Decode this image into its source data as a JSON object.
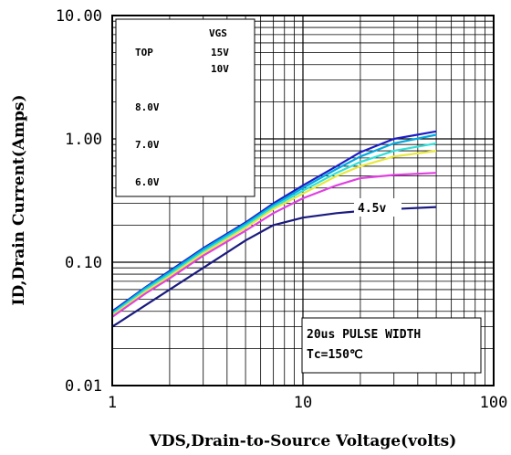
{
  "chart_data": {
    "type": "line",
    "xscale": "log",
    "yscale": "log",
    "xlim": [
      1,
      100
    ],
    "ylim": [
      0.01,
      10
    ],
    "grid": true,
    "xlabel": "VDS,Drain-to-Source Voltage(volts)",
    "ylabel": "ID,Drain Current(Amps)",
    "x_ticks": [
      "1",
      "10",
      "100"
    ],
    "y_ticks": [
      "10.00",
      "1.00",
      "0.10",
      "0.01"
    ],
    "legend": {
      "header": "VGS",
      "top_label": "TOP",
      "entries": [
        "15V",
        "10V",
        "8.0V",
        "7.0V",
        "6.0V"
      ]
    },
    "annotations": {
      "curve_label": "4.5v",
      "pulse": "20us PULSE WIDTH",
      "temp": "Tc=150℃"
    },
    "series": [
      {
        "vgs": "15V",
        "color": "#1c1cc8",
        "x": [
          1,
          1.5,
          2,
          3,
          5,
          7,
          10,
          15,
          20,
          30,
          50
        ],
        "y": [
          0.04,
          0.063,
          0.085,
          0.13,
          0.21,
          0.3,
          0.42,
          0.6,
          0.78,
          1.0,
          1.15
        ]
      },
      {
        "vgs": "10V",
        "color": "#00a8e0",
        "x": [
          1,
          1.5,
          2,
          3,
          5,
          7,
          10,
          15,
          20,
          30,
          50
        ],
        "y": [
          0.039,
          0.062,
          0.083,
          0.127,
          0.205,
          0.29,
          0.4,
          0.57,
          0.72,
          0.92,
          1.08
        ]
      },
      {
        "vgs": "8.0V",
        "color": "#30e0d8",
        "x": [
          1,
          1.5,
          2,
          3,
          5,
          7,
          10,
          15,
          20,
          30,
          50
        ],
        "y": [
          0.038,
          0.06,
          0.08,
          0.122,
          0.198,
          0.28,
          0.38,
          0.53,
          0.65,
          0.8,
          0.92
        ]
      },
      {
        "vgs": "7.0V",
        "color": "#e8e840",
        "x": [
          1,
          1.5,
          2,
          3,
          5,
          7,
          10,
          15,
          20,
          30,
          50
        ],
        "y": [
          0.037,
          0.058,
          0.077,
          0.118,
          0.19,
          0.27,
          0.36,
          0.5,
          0.6,
          0.72,
          0.8
        ]
      },
      {
        "vgs": "6.0V",
        "color": "#e040e0",
        "x": [
          1,
          1.5,
          2,
          3,
          5,
          7,
          10,
          15,
          20,
          30,
          50
        ],
        "y": [
          0.036,
          0.056,
          0.074,
          0.113,
          0.18,
          0.25,
          0.33,
          0.42,
          0.48,
          0.51,
          0.53
        ]
      },
      {
        "vgs": "4.5v",
        "color": "#1a1a80",
        "x": [
          1,
          1.5,
          2,
          3,
          5,
          7,
          10,
          15,
          20,
          30,
          50
        ],
        "y": [
          0.03,
          0.045,
          0.06,
          0.09,
          0.15,
          0.2,
          0.23,
          0.25,
          0.26,
          0.27,
          0.28
        ]
      }
    ]
  }
}
